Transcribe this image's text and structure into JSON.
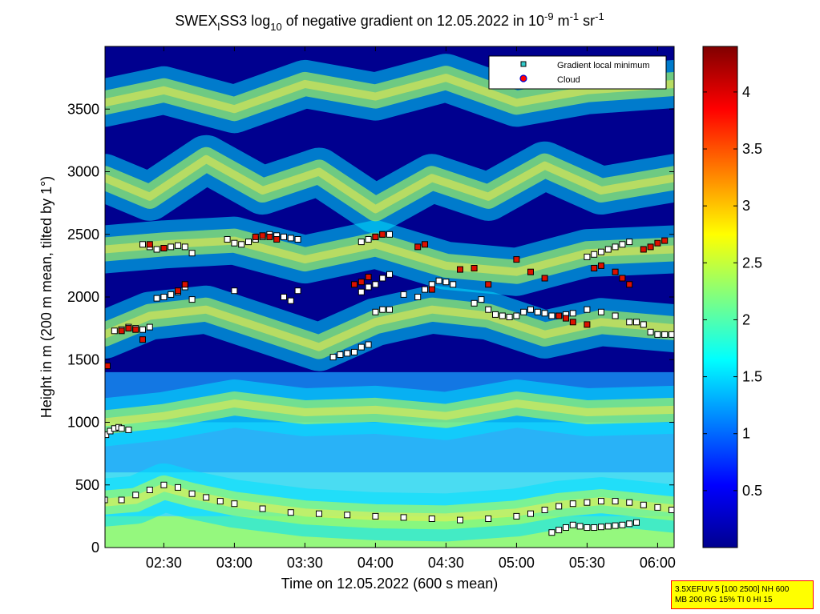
{
  "chart_data": {
    "type": "heatmap",
    "title": {
      "pre": "SWEX",
      "sub1": "l",
      "mid": "SS3 log",
      "sub2": "10",
      "post": " of negative gradient on 12.05.2022 in 10",
      "sup1": "-9",
      "unit1": " m",
      "sup2": "-1",
      "unit2": " sr",
      "sup3": "-1"
    },
    "xlabel": "Time on 12.05.2022 (600 s mean)",
    "ylabel": "Height in m (200 m mean, tilted by 1°)",
    "x_range_hours": [
      2.083,
      6.117
    ],
    "y_range_m": [
      0,
      4000
    ],
    "x_ticks": [
      {
        "v": 2.5,
        "label": "02:30"
      },
      {
        "v": 3.0,
        "label": "03:00"
      },
      {
        "v": 3.5,
        "label": "03:30"
      },
      {
        "v": 4.0,
        "label": "04:00"
      },
      {
        "v": 4.5,
        "label": "04:30"
      },
      {
        "v": 5.0,
        "label": "05:00"
      },
      {
        "v": 5.5,
        "label": "05:30"
      },
      {
        "v": 6.0,
        "label": "06:00"
      }
    ],
    "y_ticks": [
      {
        "v": 0,
        "label": "0"
      },
      {
        "v": 500,
        "label": "500"
      },
      {
        "v": 1000,
        "label": "1000"
      },
      {
        "v": 1500,
        "label": "1500"
      },
      {
        "v": 2000,
        "label": "2000"
      },
      {
        "v": 2500,
        "label": "2500"
      },
      {
        "v": 3000,
        "label": "3000"
      },
      {
        "v": 3500,
        "label": "3500"
      }
    ],
    "colorbar": {
      "range": [
        0,
        4.4
      ],
      "ticks": [
        {
          "v": 0.5,
          "label": "0.5"
        },
        {
          "v": 1.0,
          "label": "1"
        },
        {
          "v": 1.5,
          "label": "1.5"
        },
        {
          "v": 2.0,
          "label": "2"
        },
        {
          "v": 2.5,
          "label": "2.5"
        },
        {
          "v": 3.0,
          "label": "3"
        },
        {
          "v": 3.5,
          "label": "3.5"
        },
        {
          "v": 4.0,
          "label": "4"
        }
      ]
    },
    "legend": {
      "placement": "top-right",
      "entries": [
        {
          "label": "Gradient local minimum",
          "color": "#33cccc"
        },
        {
          "label": "Cloud",
          "color": "#ff0000"
        }
      ]
    },
    "layers": [
      {
        "h": [
          2.08,
          2.3,
          2.5,
          2.7,
          3.0,
          3.5,
          4.0,
          4.5,
          5.0,
          5.3,
          5.6,
          6.12
        ],
        "y": [
          360,
          380,
          480,
          420,
          350,
          280,
          250,
          240,
          280,
          340,
          370,
          310
        ]
      },
      {
        "h": [
          2.08,
          2.5,
          3.0,
          3.5,
          4.0,
          4.5,
          5.0,
          5.5,
          6.12
        ],
        "y": [
          1000,
          1050,
          1150,
          1080,
          1100,
          1050,
          1150,
          1080,
          1100
        ]
      },
      {
        "h": [
          2.08,
          2.4,
          2.8,
          3.2,
          3.6,
          4.0,
          4.4,
          4.8,
          5.2,
          5.6,
          6.12
        ],
        "y": [
          1700,
          1850,
          1900,
          1750,
          1600,
          1800,
          1900,
          1850,
          1700,
          1800,
          1750
        ]
      },
      {
        "h": [
          2.08,
          2.5,
          3.0,
          3.5,
          4.0,
          4.5,
          5.0,
          5.5,
          6.12
        ],
        "y": [
          2380,
          2420,
          2450,
          2300,
          2420,
          2250,
          2200,
          2350,
          2380
        ]
      },
      {
        "h": [
          2.08,
          2.4,
          2.8,
          3.2,
          3.6,
          4.0,
          4.4,
          4.8,
          5.2,
          5.6,
          6.12
        ],
        "y": [
          2950,
          2800,
          3100,
          2850,
          3000,
          2700,
          2950,
          2800,
          3050,
          2850,
          2950
        ]
      },
      {
        "h": [
          2.08,
          2.5,
          3.0,
          3.5,
          4.0,
          4.5,
          5.0,
          5.5,
          6.12
        ],
        "y": [
          3550,
          3650,
          3500,
          3700,
          3600,
          3750,
          3550,
          3650,
          3700
        ]
      }
    ],
    "minima_series": [
      {
        "name": "near-ground layer",
        "h": [
          2.08,
          2.2,
          2.3,
          2.4,
          2.5,
          2.6,
          2.7,
          2.8,
          2.9,
          3.0,
          3.2,
          3.4,
          3.6,
          3.8,
          4.0,
          4.2,
          4.4,
          4.6,
          4.8,
          5.0,
          5.1,
          5.2,
          5.3,
          5.4,
          5.5,
          5.6,
          5.7,
          5.8,
          5.9,
          6.0,
          6.1
        ],
        "y": [
          380,
          380,
          420,
          460,
          500,
          480,
          430,
          400,
          370,
          350,
          310,
          280,
          270,
          260,
          250,
          240,
          230,
          220,
          230,
          250,
          270,
          300,
          330,
          350,
          360,
          370,
          370,
          360,
          340,
          320,
          300
        ]
      },
      {
        "name": "lower boundary",
        "h": [
          5.25,
          5.3,
          5.35,
          5.4,
          5.45,
          5.5,
          5.55,
          5.6,
          5.65,
          5.7,
          5.75,
          5.8,
          5.85
        ],
        "y": [
          120,
          140,
          160,
          180,
          170,
          160,
          160,
          165,
          170,
          175,
          180,
          190,
          200
        ]
      },
      {
        "name": "layer about 950 m",
        "h": [
          2.09,
          2.12,
          2.15,
          2.18,
          2.2,
          2.25
        ],
        "y": [
          900,
          930,
          950,
          960,
          950,
          940
        ]
      },
      {
        "name": "layer about 1700 m",
        "h": [
          2.15,
          2.2,
          2.25,
          2.3,
          2.35,
          2.4,
          3.7,
          3.75,
          3.8,
          3.85,
          3.9,
          3.95,
          4.0,
          4.05,
          4.1,
          4.7,
          4.75,
          4.8,
          4.85,
          4.9,
          4.95,
          5.0,
          5.05,
          5.1,
          5.15,
          5.2,
          5.25,
          5.3,
          5.35,
          5.4,
          5.5,
          5.6,
          5.7,
          5.8,
          5.85,
          5.9,
          5.95,
          6.0,
          6.05,
          6.1
        ],
        "y": [
          1730,
          1740,
          1760,
          1750,
          1740,
          1760,
          1520,
          1540,
          1550,
          1560,
          1600,
          1620,
          1880,
          1900,
          1900,
          1950,
          1980,
          1900,
          1860,
          1850,
          1840,
          1850,
          1880,
          1900,
          1880,
          1870,
          1850,
          1850,
          1860,
          1870,
          1900,
          1880,
          1850,
          1800,
          1800,
          1780,
          1720,
          1700,
          1700,
          1700
        ]
      },
      {
        "name": "layer about 2000 m",
        "h": [
          2.45,
          2.5,
          2.55,
          2.6,
          2.65,
          2.7,
          3.0,
          3.35,
          3.4,
          3.45,
          3.9,
          3.95,
          4.0,
          4.05,
          4.1,
          4.2,
          4.3,
          4.35,
          4.4,
          4.45,
          4.5,
          4.55
        ],
        "y": [
          1990,
          2000,
          2020,
          2040,
          2080,
          1980,
          2050,
          2000,
          1970,
          2050,
          2040,
          2080,
          2100,
          2150,
          2180,
          2020,
          2000,
          2060,
          2100,
          2130,
          2120,
          2100
        ]
      },
      {
        "name": "layer about 2400 m",
        "h": [
          2.35,
          2.4,
          2.45,
          2.5,
          2.55,
          2.6,
          2.65,
          2.7,
          2.95,
          3.0,
          3.05,
          3.1,
          3.15,
          3.2,
          3.25,
          3.3,
          3.35,
          3.4,
          3.45,
          3.9,
          3.95,
          4.0,
          4.05,
          4.1,
          5.5,
          5.55,
          5.6,
          5.65,
          5.7,
          5.75,
          5.8
        ],
        "y": [
          2420,
          2400,
          2380,
          2390,
          2400,
          2410,
          2400,
          2350,
          2460,
          2430,
          2420,
          2440,
          2460,
          2480,
          2500,
          2490,
          2480,
          2470,
          2460,
          2440,
          2460,
          2480,
          2500,
          2500,
          2320,
          2340,
          2360,
          2380,
          2400,
          2420,
          2440
        ]
      }
    ],
    "cloud_series": [
      {
        "name": "clouds",
        "h": [
          2.1,
          2.2,
          2.25,
          2.3,
          2.35,
          2.4,
          2.5,
          2.6,
          2.65,
          3.15,
          3.2,
          3.25,
          3.3,
          3.85,
          3.9,
          3.95,
          4.0,
          4.05,
          4.3,
          4.35,
          4.4,
          4.6,
          4.7,
          4.8,
          5.0,
          5.1,
          5.2,
          5.3,
          5.35,
          5.4,
          5.5,
          5.55,
          5.6,
          5.7,
          5.75,
          5.8,
          5.9,
          5.95,
          6.0,
          6.05
        ],
        "y": [
          1450,
          1730,
          1750,
          1740,
          1660,
          2420,
          2390,
          2050,
          2100,
          2480,
          2490,
          2480,
          2460,
          2100,
          2120,
          2160,
          2480,
          2500,
          2400,
          2420,
          2060,
          2220,
          2230,
          2100,
          2300,
          2200,
          2150,
          1850,
          1830,
          1800,
          1780,
          2230,
          2250,
          2200,
          2150,
          2100,
          2380,
          2400,
          2430,
          2450
        ]
      }
    ]
  },
  "info_box": {
    "line1": "3.5XEFUV 5 [100 2500] NH 600",
    "line2": "MB 200 RG 15% TI 0 HI 15"
  }
}
